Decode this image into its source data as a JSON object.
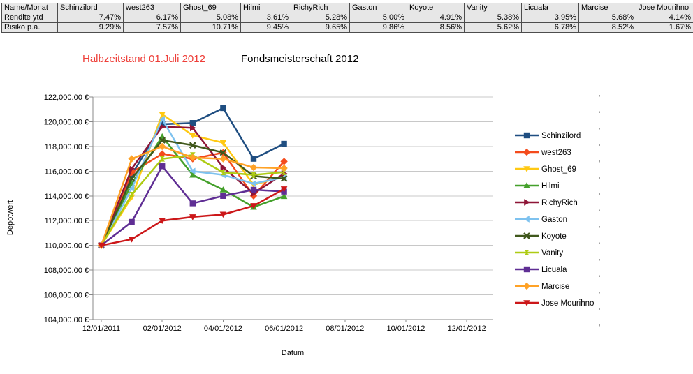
{
  "titles": {
    "highlight": "Halbzeitstand 01.Juli 2012",
    "highlight_color": "#ee3e38",
    "main": "Fondsmeisterschaft 2012"
  },
  "table": {
    "columns": [
      "Name/Monat",
      "Schinzilord",
      "west263",
      "Ghost_69",
      "Hilmi",
      "RichyRich",
      "Gaston",
      "Koyote",
      "Vanity",
      "Licuala",
      "Marcise",
      "Jose Mourihno"
    ],
    "rows": [
      {
        "label": "Rendite ytd",
        "values": [
          "7.47%",
          "6.17%",
          "5.08%",
          "3.61%",
          "5.28%",
          "5.00%",
          "4.91%",
          "5.38%",
          "3.95%",
          "5.68%",
          "4.14%"
        ]
      },
      {
        "label": "Risiko p.a.",
        "values": [
          "9.29%",
          "7.57%",
          "10.71%",
          "9.45%",
          "9.65%",
          "9.86%",
          "8.56%",
          "5.62%",
          "6.78%",
          "8.52%",
          "1.67%"
        ]
      }
    ]
  },
  "chart_data": {
    "type": "line",
    "title": "Fondsmeisterschaft 2012",
    "xlabel": "Datum",
    "ylabel": "Depotwert",
    "grid": true,
    "legend_position": "right",
    "x_tick_labels": [
      "12/01/2011",
      "02/01/2012",
      "04/01/2012",
      "06/01/2012",
      "08/01/2012",
      "10/01/2012",
      "12/01/2012"
    ],
    "y_axis": {
      "min": 104000,
      "max": 122000,
      "step": 2000,
      "tick_labels": [
        "104,000.00 €",
        "106,000.00 €",
        "108,000.00 €",
        "110,000.00 €",
        "112,000.00 €",
        "114,000.00 €",
        "116,000.00 €",
        "118,000.00 €",
        "120,000.00 €",
        "122,000.00 €"
      ]
    },
    "point_dates": [
      "12/01/2011",
      "01/01/2012",
      "02/01/2012",
      "03/01/2012",
      "04/01/2012",
      "05/01/2012",
      "06/01/2012"
    ],
    "series": [
      {
        "name": "Schinzilord",
        "color": "#1f4e81",
        "marker": "square",
        "values": [
          110000,
          115700,
          119800,
          119900,
          121100,
          117000,
          118217
        ]
      },
      {
        "name": "west263",
        "color": "#f44b1c",
        "marker": "diamond",
        "values": [
          110000,
          115900,
          117400,
          117000,
          117500,
          114000,
          116787
        ]
      },
      {
        "name": "Ghost_69",
        "color": "#ffc913",
        "marker": "triangle-down",
        "values": [
          110000,
          113900,
          120600,
          118900,
          118300,
          114900,
          115588
        ]
      },
      {
        "name": "Hilmi",
        "color": "#44a02b",
        "marker": "triangle-up",
        "values": [
          110000,
          115000,
          118800,
          115700,
          114500,
          113100,
          113971
        ]
      },
      {
        "name": "RichyRich",
        "color": "#8e1537",
        "marker": "triangle-right",
        "values": [
          110000,
          116200,
          119600,
          119500,
          116300,
          114200,
          115808
        ]
      },
      {
        "name": "Gaston",
        "color": "#7ec2ef",
        "marker": "triangle-left",
        "values": [
          110000,
          114600,
          120200,
          116000,
          115700,
          115000,
          115500
        ]
      },
      {
        "name": "Koyote",
        "color": "#40581c",
        "marker": "x",
        "values": [
          110000,
          115400,
          118500,
          118100,
          117500,
          115600,
          115401
        ]
      },
      {
        "name": "Vanity",
        "color": "#aecb13",
        "marker": "hourglass",
        "values": [
          110000,
          114100,
          117000,
          117300,
          115900,
          115700,
          115918
        ]
      },
      {
        "name": "Licuala",
        "color": "#5f2e94",
        "marker": "square",
        "values": [
          110000,
          111900,
          116400,
          113400,
          114000,
          114500,
          114345
        ]
      },
      {
        "name": "Marcise",
        "color": "#ffa226",
        "marker": "diamond",
        "values": [
          110000,
          117000,
          118000,
          117100,
          117000,
          116300,
          116248
        ]
      },
      {
        "name": "Jose Mourihno",
        "color": "#cc1719",
        "marker": "triangle-down",
        "values": [
          110000,
          110500,
          112000,
          112300,
          112500,
          113200,
          114554
        ]
      }
    ]
  }
}
